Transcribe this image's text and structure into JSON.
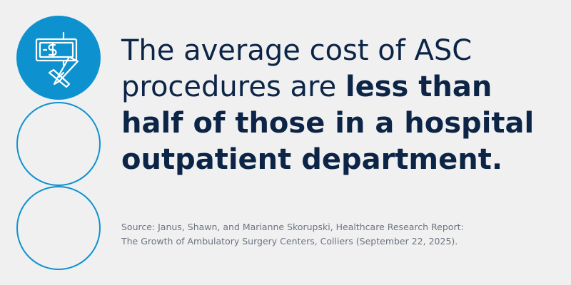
{
  "icon": {
    "name": "money-scalpel-icon"
  },
  "colors": {
    "accent": "#0e92cf",
    "headline": "#0c2546",
    "source": "#6d7480",
    "background": "#f0f0f1"
  },
  "headline": {
    "regular": "The average cost of ASC procedures are ",
    "bold": "less than half of those in a hospital outpatient department."
  },
  "source": {
    "line1": "Source: Janus, Shawn, and Marianne Skorupski, Healthcare Research Report:",
    "line2": "The Growth of Ambulatory Surgery Centers, Colliers (September 22, 2025)."
  }
}
